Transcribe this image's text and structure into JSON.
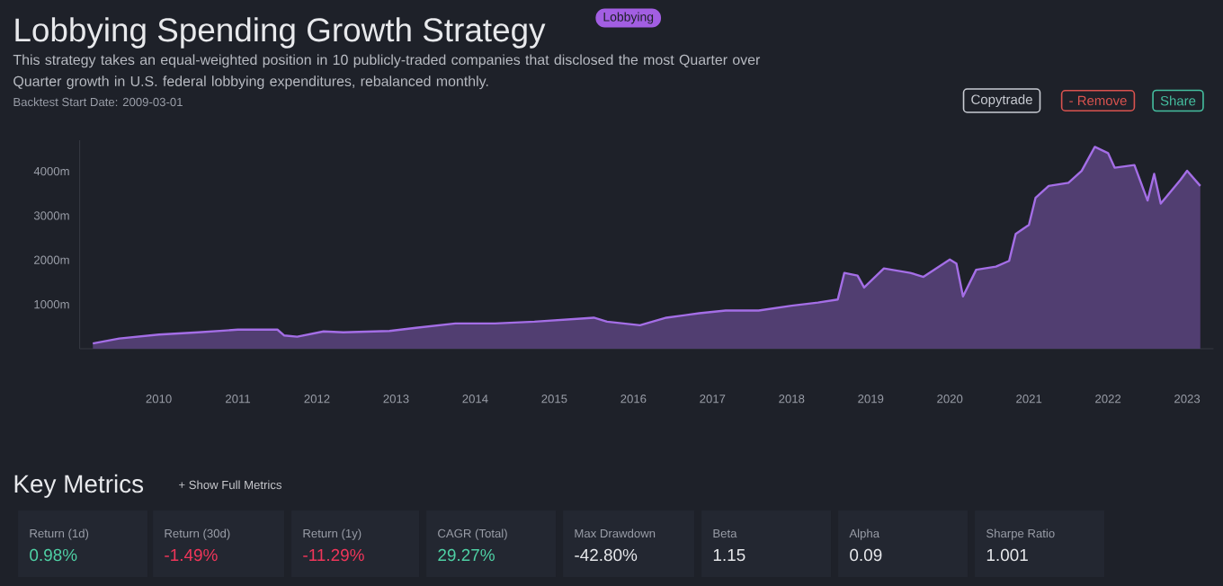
{
  "chart_data": {
    "type": "area",
    "title": "Lobbying Spending Growth Strategy",
    "subtitle": "This strategy takes an equal-weighted position in 10 publicly-traded companies that disclosed the most Quarter over Quarter growth in U.S. federal lobbying expenditures, rebalanced monthly.",
    "annotations": [
      "Lobbying",
      "Backtest Start Date: 2009-03-01",
      "Copytrade",
      "- Remove",
      "Share",
      "Key Metrics",
      "+ Show Full Metrics",
      "Return (1d)",
      "0.98%",
      "Return (30d)",
      "-1.49%",
      "Return (1y)",
      "-11.29%",
      "CAGR (Total)",
      "29.27%",
      "Max Drawdown",
      "-42.80%",
      "Beta",
      "1.15",
      "Alpha",
      "0.09",
      "Sharpe Ratio",
      "1.001"
    ],
    "x": [
      "2009-03",
      "2009-07",
      "2010-01",
      "2010-07",
      "2011-01",
      "2011-07",
      "2011-08",
      "2011-10",
      "2012-02",
      "2012-05",
      "2012-12",
      "2013-04",
      "2013-10",
      "2014-04",
      "2014-10",
      "2015-05",
      "2015-07",
      "2015-09",
      "2016-02",
      "2016-06",
      "2016-11",
      "2017-03",
      "2017-08",
      "2018-01",
      "2018-05",
      "2018-08",
      "2018-09",
      "2018-11",
      "2018-12",
      "2019-03",
      "2019-07",
      "2019-09",
      "2020-01",
      "2020-02",
      "2020-03",
      "2020-05",
      "2020-08",
      "2020-10",
      "2020-11",
      "2021-01",
      "2021-02",
      "2021-04",
      "2021-07",
      "2021-09",
      "2021-11",
      "2022-01",
      "2022-02",
      "2022-05",
      "2022-07",
      "2022-08",
      "2022-09",
      "2022-12",
      "2023-01",
      "2023-03"
    ],
    "values": [
      120,
      230,
      320,
      370,
      430,
      430,
      300,
      270,
      390,
      370,
      400,
      470,
      570,
      570,
      610,
      680,
      700,
      610,
      530,
      700,
      800,
      860,
      860,
      970,
      1040,
      1110,
      1710,
      1650,
      1380,
      1810,
      1710,
      1620,
      2010,
      1920,
      1180,
      1780,
      1850,
      1980,
      2590,
      2790,
      3400,
      3670,
      3740,
      4010,
      4550,
      4410,
      4080,
      4140,
      3340,
      3940,
      3270,
      3810,
      4010,
      3670
    ],
    "color": "#a46ee6",
    "xlim": [
      "2009-01",
      "2023-05"
    ],
    "xticks": [
      "2010",
      "2011",
      "2012",
      "2013",
      "2014",
      "2015",
      "2016",
      "2017",
      "2018",
      "2019",
      "2020",
      "2021",
      "2022",
      "2023"
    ],
    "ylim": [
      0,
      4700
    ],
    "yticks": [
      {
        "value": 1000,
        "label": "1000m"
      },
      {
        "value": 2000,
        "label": "2000m"
      },
      {
        "value": 3000,
        "label": "3000m"
      },
      {
        "value": 4000,
        "label": "4000m"
      }
    ],
    "grid": false,
    "marker": "none",
    "line_style": "solid"
  }
}
